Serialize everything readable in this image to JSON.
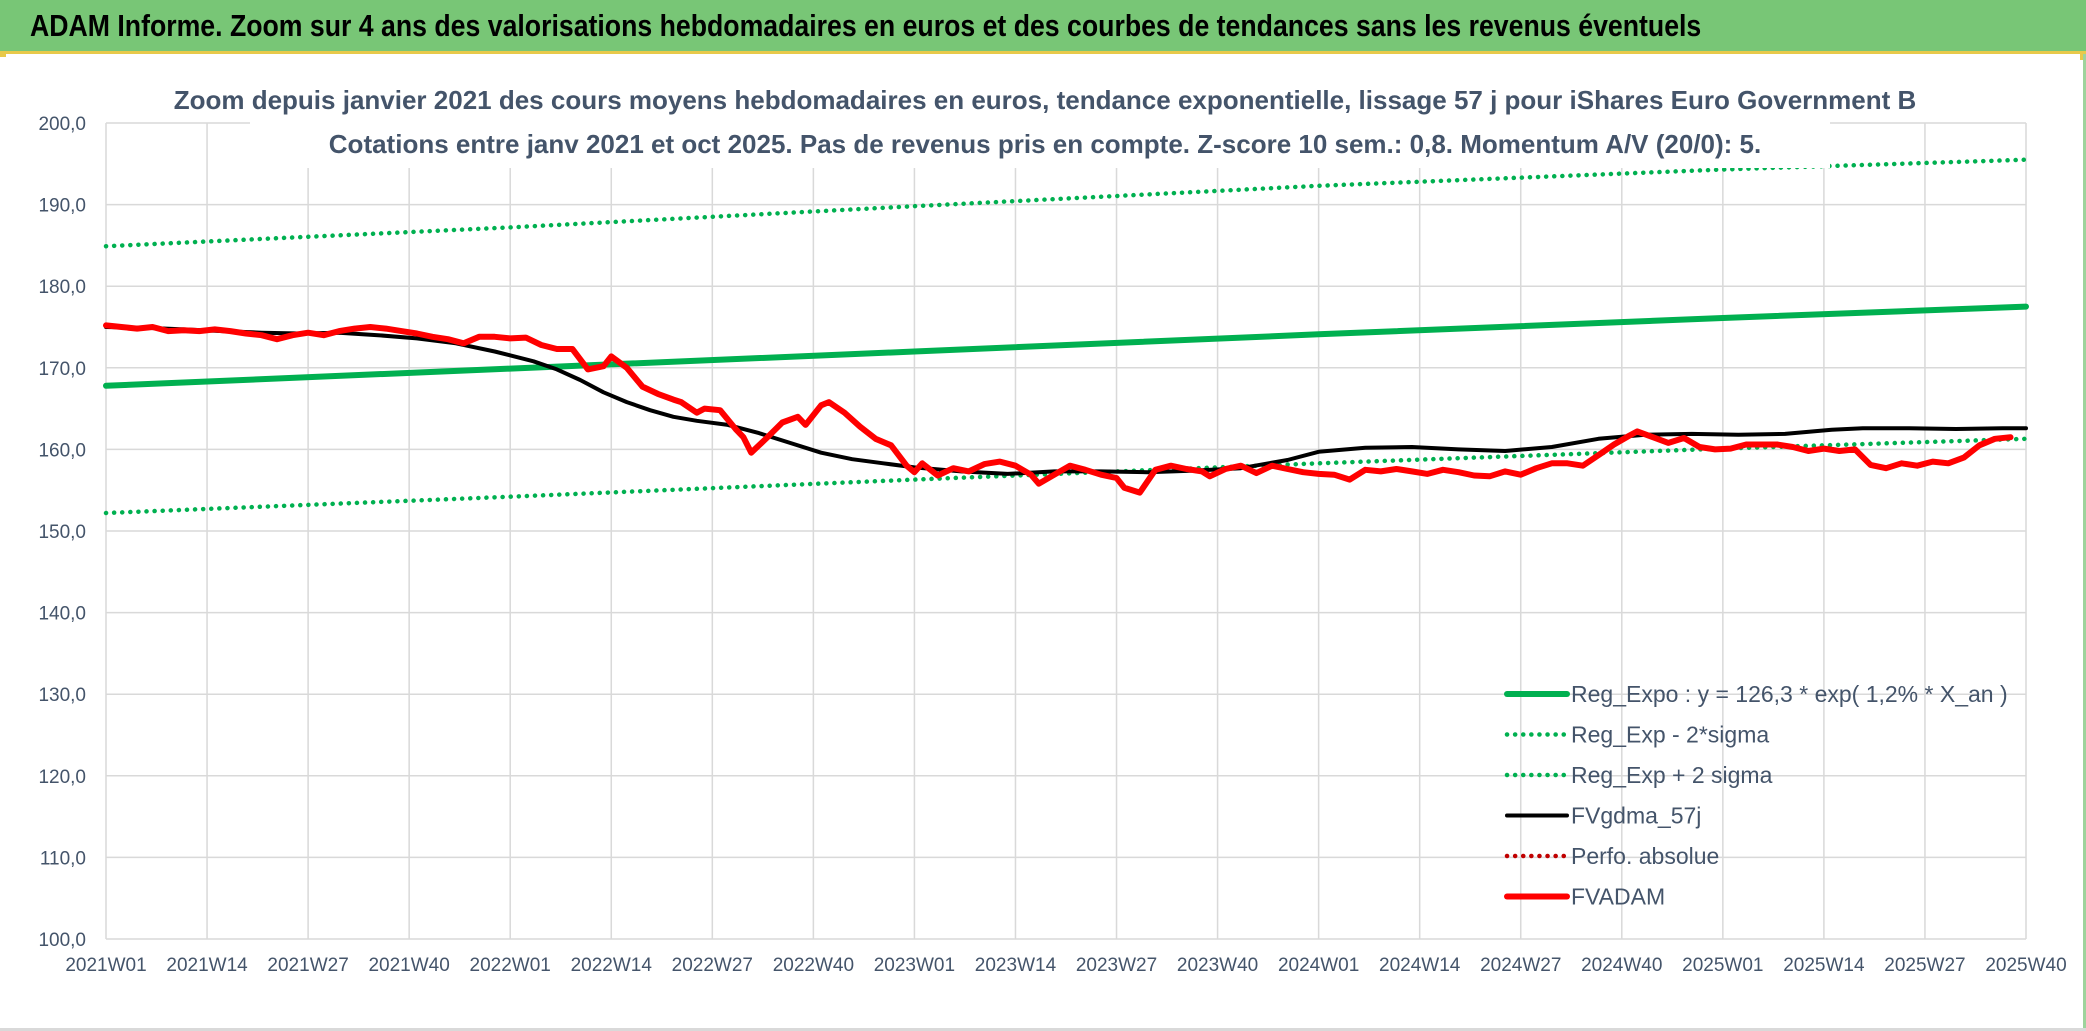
{
  "banner": {
    "title": "ADAM Informe. Zoom sur 4 ans des valorisations hebdomadaires en euros et des courbes de tendances sans les revenus éventuels"
  },
  "colors": {
    "banner_bg": "#78c676",
    "accent_line": "#e8c94a",
    "trend_green": "#00b050",
    "fvadam_red": "#ff0000",
    "smooth_black": "#000000",
    "text_gray": "#44546a",
    "grid": "#d9d9d9"
  },
  "chart_data": {
    "type": "line",
    "title": "Zoom depuis janvier 2021 des cours moyens hebdomadaires en euros, tendance exponentielle, lissage 57 j pour iShares Euro Government B",
    "subtitle": "Cotations entre janv 2021 et oct 2025. Pas de revenus pris en compte. Z-score 10 sem.: 0,8. Momentum A/V (20/0): 5.",
    "xlabel": "",
    "ylabel": "",
    "ylim": [
      100,
      200
    ],
    "y_ticks": [
      "100,0",
      "110,0",
      "120,0",
      "130,0",
      "140,0",
      "150,0",
      "160,0",
      "170,0",
      "180,0",
      "190,0",
      "200,0"
    ],
    "x_ticks": [
      "2021W01",
      "2021W14",
      "2021W27",
      "2021W40",
      "2022W01",
      "2022W14",
      "2022W27",
      "2022W40",
      "2023W01",
      "2023W14",
      "2023W27",
      "2023W40",
      "2024W01",
      "2024W14",
      "2024W27",
      "2024W40",
      "2025W01",
      "2025W14",
      "2025W27",
      "2025W40"
    ],
    "x_tick_index": [
      0,
      13,
      26,
      39,
      52,
      65,
      78,
      91,
      104,
      117,
      130,
      143,
      156,
      169,
      182,
      195,
      208,
      221,
      234,
      247
    ],
    "x_max_index": 247,
    "grid": true,
    "legend_position": "bottom-right",
    "series": [
      {
        "name": "Reg_Expo : y = 126,3 * exp( 1,2% *  X_an )",
        "style": "solid-thick",
        "color": "#00b050",
        "points": [
          [
            0,
            167.8
          ],
          [
            52,
            169.9
          ],
          [
            104,
            172.0
          ],
          [
            156,
            174.1
          ],
          [
            208,
            176.1
          ],
          [
            247,
            177.5
          ]
        ]
      },
      {
        "name": "Reg_Exp - 2*sigma",
        "style": "dotted",
        "color": "#00b050",
        "points": [
          [
            0,
            152.2
          ],
          [
            52,
            154.2
          ],
          [
            104,
            156.3
          ],
          [
            156,
            158.3
          ],
          [
            208,
            160.1
          ],
          [
            247,
            161.3
          ]
        ]
      },
      {
        "name": "Reg_Exp + 2 sigma",
        "style": "dotted",
        "color": "#00b050",
        "points": [
          [
            0,
            184.9
          ],
          [
            52,
            187.2
          ],
          [
            104,
            189.8
          ],
          [
            156,
            192.3
          ],
          [
            208,
            194.3
          ],
          [
            247,
            195.5
          ]
        ]
      },
      {
        "name": "FVgdma_57j",
        "style": "solid",
        "color": "#000000",
        "points": [
          [
            0,
            175.0
          ],
          [
            5,
            174.9
          ],
          [
            10,
            174.7
          ],
          [
            15,
            174.5
          ],
          [
            20,
            174.3
          ],
          [
            25,
            174.2
          ],
          [
            30,
            174.3
          ],
          [
            35,
            174.0
          ],
          [
            40,
            173.6
          ],
          [
            45,
            173.0
          ],
          [
            50,
            172.0
          ],
          [
            55,
            170.8
          ],
          [
            58,
            169.8
          ],
          [
            61,
            168.5
          ],
          [
            64,
            167.0
          ],
          [
            67,
            165.8
          ],
          [
            70,
            164.8
          ],
          [
            73,
            164.0
          ],
          [
            76,
            163.5
          ],
          [
            80,
            163.0
          ],
          [
            84,
            162.0
          ],
          [
            88,
            160.8
          ],
          [
            92,
            159.6
          ],
          [
            96,
            158.8
          ],
          [
            100,
            158.3
          ],
          [
            104,
            157.8
          ],
          [
            110,
            157.3
          ],
          [
            116,
            157.0
          ],
          [
            122,
            157.3
          ],
          [
            128,
            157.3
          ],
          [
            134,
            157.2
          ],
          [
            140,
            157.4
          ],
          [
            146,
            157.7
          ],
          [
            152,
            158.7
          ],
          [
            156,
            159.7
          ],
          [
            162,
            160.2
          ],
          [
            168,
            160.3
          ],
          [
            174,
            160.0
          ],
          [
            180,
            159.8
          ],
          [
            186,
            160.3
          ],
          [
            192,
            161.3
          ],
          [
            198,
            161.8
          ],
          [
            204,
            161.9
          ],
          [
            210,
            161.8
          ],
          [
            216,
            161.9
          ],
          [
            222,
            162.4
          ],
          [
            226,
            162.6
          ],
          [
            232,
            162.6
          ],
          [
            238,
            162.5
          ],
          [
            244,
            162.6
          ],
          [
            247,
            162.6
          ]
        ]
      },
      {
        "name": "Perfo. absolue",
        "style": "dotted",
        "color": "#c00000",
        "points": []
      },
      {
        "name": "FVADAM",
        "style": "solid-thick",
        "color": "#ff0000",
        "points": [
          [
            0,
            175.2
          ],
          [
            2,
            175.0
          ],
          [
            4,
            174.8
          ],
          [
            6,
            175.0
          ],
          [
            8,
            174.5
          ],
          [
            10,
            174.6
          ],
          [
            12,
            174.5
          ],
          [
            14,
            174.7
          ],
          [
            16,
            174.5
          ],
          [
            18,
            174.2
          ],
          [
            20,
            174.0
          ],
          [
            22,
            173.5
          ],
          [
            24,
            174.0
          ],
          [
            26,
            174.3
          ],
          [
            28,
            174.0
          ],
          [
            30,
            174.5
          ],
          [
            32,
            174.8
          ],
          [
            34,
            175.0
          ],
          [
            36,
            174.8
          ],
          [
            38,
            174.5
          ],
          [
            40,
            174.2
          ],
          [
            42,
            173.8
          ],
          [
            44,
            173.5
          ],
          [
            46,
            173.0
          ],
          [
            48,
            173.8
          ],
          [
            50,
            173.8
          ],
          [
            52,
            173.6
          ],
          [
            54,
            173.7
          ],
          [
            56,
            172.8
          ],
          [
            58,
            172.3
          ],
          [
            60,
            172.3
          ],
          [
            62,
            169.8
          ],
          [
            64,
            170.2
          ],
          [
            65,
            171.4
          ],
          [
            67,
            170.0
          ],
          [
            69,
            167.7
          ],
          [
            71,
            166.8
          ],
          [
            73,
            166.1
          ],
          [
            74,
            165.8
          ],
          [
            76,
            164.5
          ],
          [
            77,
            165.0
          ],
          [
            79,
            164.8
          ],
          [
            81,
            162.5
          ],
          [
            82,
            161.5
          ],
          [
            83,
            159.6
          ],
          [
            85,
            161.4
          ],
          [
            87,
            163.3
          ],
          [
            89,
            164.0
          ],
          [
            90,
            163.0
          ],
          [
            92,
            165.4
          ],
          [
            93,
            165.8
          ],
          [
            95,
            164.5
          ],
          [
            97,
            162.8
          ],
          [
            99,
            161.3
          ],
          [
            101,
            160.5
          ],
          [
            103,
            158.0
          ],
          [
            104,
            157.2
          ],
          [
            105,
            158.3
          ],
          [
            107,
            156.8
          ],
          [
            109,
            157.7
          ],
          [
            111,
            157.3
          ],
          [
            113,
            158.2
          ],
          [
            115,
            158.5
          ],
          [
            117,
            158.0
          ],
          [
            119,
            156.9
          ],
          [
            120,
            155.8
          ],
          [
            122,
            156.9
          ],
          [
            124,
            158.0
          ],
          [
            126,
            157.5
          ],
          [
            128,
            156.9
          ],
          [
            130,
            156.5
          ],
          [
            131,
            155.3
          ],
          [
            133,
            154.7
          ],
          [
            135,
            157.5
          ],
          [
            137,
            158.0
          ],
          [
            139,
            157.6
          ],
          [
            141,
            157.3
          ],
          [
            142,
            156.7
          ],
          [
            144,
            157.6
          ],
          [
            146,
            158.0
          ],
          [
            148,
            157.1
          ],
          [
            150,
            158.0
          ],
          [
            152,
            157.6
          ],
          [
            154,
            157.2
          ],
          [
            156,
            157.0
          ],
          [
            158,
            156.9
          ],
          [
            160,
            156.3
          ],
          [
            162,
            157.5
          ],
          [
            164,
            157.3
          ],
          [
            166,
            157.6
          ],
          [
            168,
            157.3
          ],
          [
            170,
            157.0
          ],
          [
            172,
            157.5
          ],
          [
            174,
            157.2
          ],
          [
            176,
            156.8
          ],
          [
            178,
            156.7
          ],
          [
            180,
            157.3
          ],
          [
            182,
            156.9
          ],
          [
            184,
            157.7
          ],
          [
            186,
            158.3
          ],
          [
            188,
            158.3
          ],
          [
            190,
            158.0
          ],
          [
            192,
            159.3
          ],
          [
            194,
            160.6
          ],
          [
            196,
            161.7
          ],
          [
            197,
            162.2
          ],
          [
            199,
            161.5
          ],
          [
            201,
            160.8
          ],
          [
            203,
            161.4
          ],
          [
            205,
            160.3
          ],
          [
            207,
            160.0
          ],
          [
            209,
            160.1
          ],
          [
            211,
            160.6
          ],
          [
            213,
            160.6
          ],
          [
            215,
            160.6
          ],
          [
            217,
            160.3
          ],
          [
            219,
            159.8
          ],
          [
            221,
            160.1
          ],
          [
            223,
            159.8
          ],
          [
            225,
            160.0
          ],
          [
            227,
            158.1
          ],
          [
            229,
            157.7
          ],
          [
            231,
            158.3
          ],
          [
            233,
            158.0
          ],
          [
            235,
            158.5
          ],
          [
            237,
            158.3
          ],
          [
            239,
            159.0
          ],
          [
            241,
            160.5
          ],
          [
            243,
            161.3
          ],
          [
            245,
            161.5
          ]
        ]
      }
    ]
  }
}
